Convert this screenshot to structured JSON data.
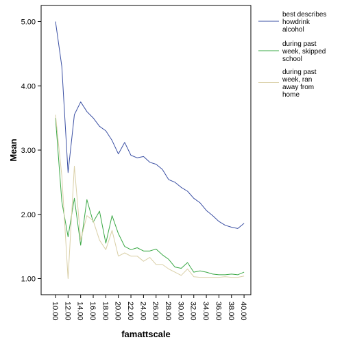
{
  "chart_data": {
    "type": "line",
    "xlabel": "famattscale",
    "ylabel": "Mean",
    "ylim": [
      0.9,
      5.15
    ],
    "y_ticks": [
      "5.00",
      "4.00",
      "3.00",
      "2.00",
      "1.00"
    ],
    "y_tick_values": [
      5,
      4,
      3,
      2,
      1
    ],
    "x_ticks": [
      "10.00",
      "12.00",
      "14.00",
      "16.00",
      "18.00",
      "20.00",
      "22.00",
      "24.00",
      "26.00",
      "28.00",
      "30.00",
      "32.00",
      "34.00",
      "36.00",
      "38.00",
      "40.00"
    ],
    "x_tick_values": [
      10,
      12,
      14,
      16,
      18,
      20,
      22,
      24,
      26,
      28,
      30,
      32,
      34,
      36,
      38,
      40
    ],
    "x": [
      10,
      11,
      12,
      13,
      14,
      15,
      16,
      17,
      18,
      19,
      20,
      21,
      22,
      23,
      24,
      25,
      26,
      27,
      28,
      29,
      30,
      31,
      32,
      33,
      34,
      35,
      36,
      37,
      38,
      39,
      40
    ],
    "grid": false,
    "legend_position": "top-right",
    "series": [
      {
        "name": [
          "best describes",
          "howdrink",
          "alcohol"
        ],
        "color": "#3a4fa3",
        "values": [
          5.0,
          4.3,
          2.65,
          3.55,
          3.75,
          3.6,
          3.5,
          3.37,
          3.3,
          3.15,
          2.94,
          3.12,
          2.92,
          2.88,
          2.9,
          2.81,
          2.78,
          2.7,
          2.54,
          2.5,
          2.42,
          2.36,
          2.25,
          2.18,
          2.06,
          1.98,
          1.89,
          1.83,
          1.8,
          1.78,
          1.86
        ]
      },
      {
        "name": [
          "during past",
          "week, skipped",
          "school"
        ],
        "color": "#3aa845",
        "values": [
          3.5,
          2.2,
          1.65,
          2.25,
          1.52,
          2.23,
          1.88,
          2.05,
          1.55,
          1.98,
          1.7,
          1.5,
          1.45,
          1.48,
          1.43,
          1.43,
          1.46,
          1.37,
          1.3,
          1.18,
          1.16,
          1.25,
          1.1,
          1.12,
          1.1,
          1.07,
          1.06,
          1.06,
          1.07,
          1.06,
          1.1
        ]
      },
      {
        "name": [
          "during past",
          "week, ran",
          "away from",
          "home"
        ],
        "color": "#d9cfa6",
        "values": [
          3.55,
          2.6,
          1.0,
          2.75,
          1.6,
          1.98,
          1.9,
          1.6,
          1.45,
          1.75,
          1.35,
          1.4,
          1.35,
          1.35,
          1.27,
          1.33,
          1.22,
          1.22,
          1.15,
          1.1,
          1.05,
          1.15,
          1.03,
          1.02,
          1.02,
          1.02,
          1.02,
          1.03,
          1.02,
          1.02,
          1.04
        ]
      }
    ]
  }
}
